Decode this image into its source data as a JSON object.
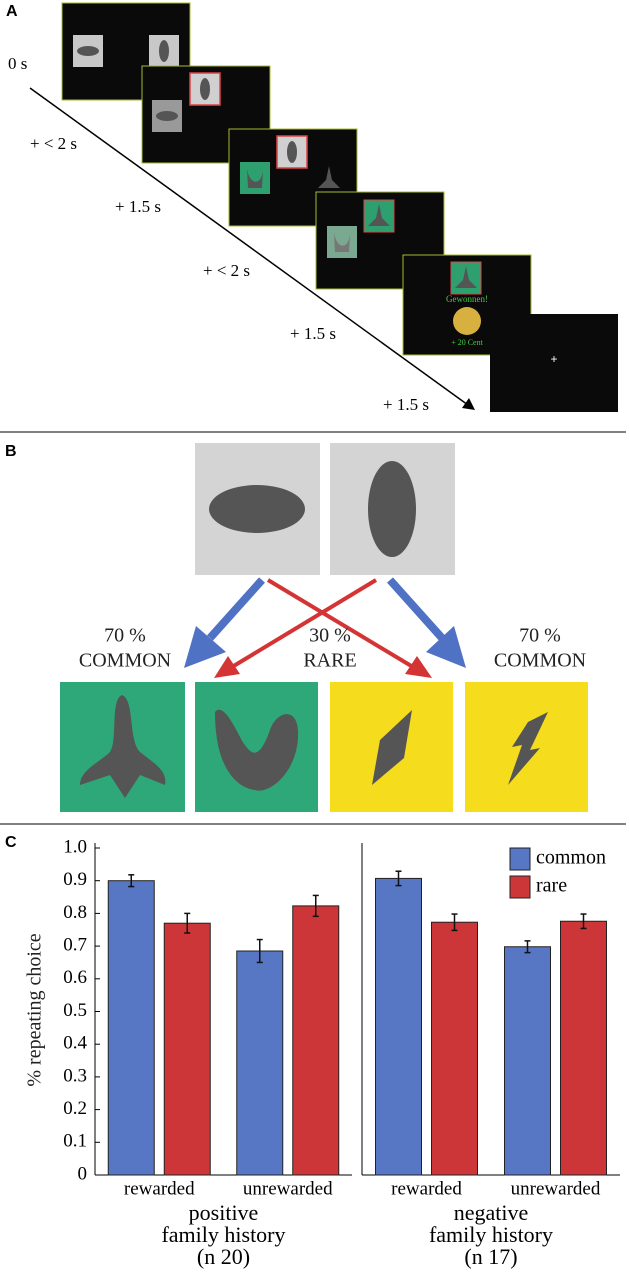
{
  "panel_a": {
    "label": "A",
    "times": [
      "0 s",
      "+ < 2 s",
      "+ 1.5 s",
      "+ < 2 s",
      "+ 1.5 s",
      "+ 1.5 s"
    ],
    "win_text": "Gewonnen!",
    "amount_text": "+ 20 Cent",
    "fixation": "+"
  },
  "panel_b": {
    "label": "B",
    "left": {
      "percent": "70 %",
      "kind": "COMMON"
    },
    "middle": {
      "percent": "30 %",
      "kind": "RARE"
    },
    "right": {
      "percent": "70 %",
      "kind": "COMMON"
    }
  },
  "panel_c": {
    "label": "C"
  },
  "chart_data": [
    {
      "type": "bar",
      "ylabel": "% repeating choice",
      "categories": [
        "rewarded",
        "unrewarded"
      ],
      "xlabel_lines": [
        "positive",
        "family history",
        "(n 20)"
      ],
      "series": [
        {
          "color": "#5777c4",
          "values": [
            0.9,
            0.685
          ],
          "errors": [
            0.018,
            0.035
          ]
        },
        {
          "color": "#cc3638",
          "values": [
            0.77,
            0.823
          ],
          "errors": [
            0.03,
            0.032
          ]
        }
      ],
      "ylim": [
        0,
        1
      ],
      "yticks": [
        0,
        0.1,
        0.2,
        0.3,
        0.4,
        0.5,
        0.6,
        0.7,
        0.8,
        0.9,
        {
          "value": 1,
          "label": "1.0"
        }
      ]
    },
    {
      "type": "bar",
      "categories": [
        "rewarded",
        "unrewarded"
      ],
      "xlabel_lines": [
        "negative",
        "family history",
        "(n 17)"
      ],
      "series": [
        {
          "name": "common",
          "color": "#5777c4",
          "values": [
            0.907,
            0.698
          ],
          "errors": [
            0.022,
            0.018
          ]
        },
        {
          "name": "rare",
          "color": "#cc3638",
          "values": [
            0.773,
            0.776
          ],
          "errors": [
            0.025,
            0.022
          ]
        }
      ],
      "ylim": [
        0,
        1
      ],
      "legend": "upper right"
    }
  ]
}
